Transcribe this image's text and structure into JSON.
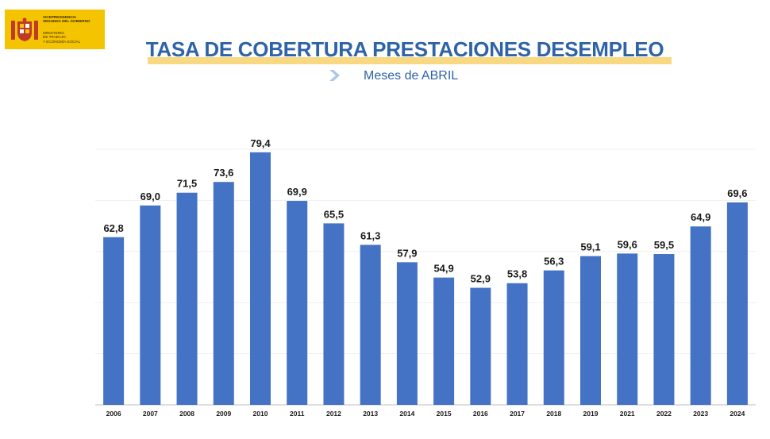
{
  "header": {
    "logo_line1": "VICEPRESIDENCIA\nSEGUNDA DEL GOBIERNO",
    "logo_line2": "MINISTERIO\nDE TRABAJO\nY ECONOMÍA SOCIAL",
    "title": "TASA DE COBERTURA PRESTACIONES DESEMPLEO",
    "subtitle": "Meses de ABRIL"
  },
  "colors": {
    "bar": "#4472c4",
    "title": "#2e63a8",
    "logo_bg": "#f5c400",
    "highlight": "#f7d26b"
  },
  "chart_data": {
    "type": "bar",
    "categories": [
      "2006",
      "2007",
      "2008",
      "2009",
      "2010",
      "2011",
      "2012",
      "2013",
      "2014",
      "2015",
      "2016",
      "2017",
      "2018",
      "2019",
      "2021",
      "2022",
      "2023",
      "2024"
    ],
    "values": [
      62.8,
      69.0,
      71.5,
      73.6,
      79.4,
      69.9,
      65.5,
      61.3,
      57.9,
      54.9,
      52.9,
      53.8,
      56.3,
      59.1,
      59.6,
      59.5,
      64.9,
      69.6
    ],
    "labels": [
      "62,8",
      "69,0",
      "71,5",
      "73,6",
      "79,4",
      "69,9",
      "65,5",
      "61,3",
      "57,9",
      "54,9",
      "52,9",
      "53,8",
      "56,3",
      "59,1",
      "59,6",
      "59,5",
      "64,9",
      "69,6"
    ],
    "ylim": [
      30,
      80
    ],
    "grid": true,
    "legend": "none"
  }
}
